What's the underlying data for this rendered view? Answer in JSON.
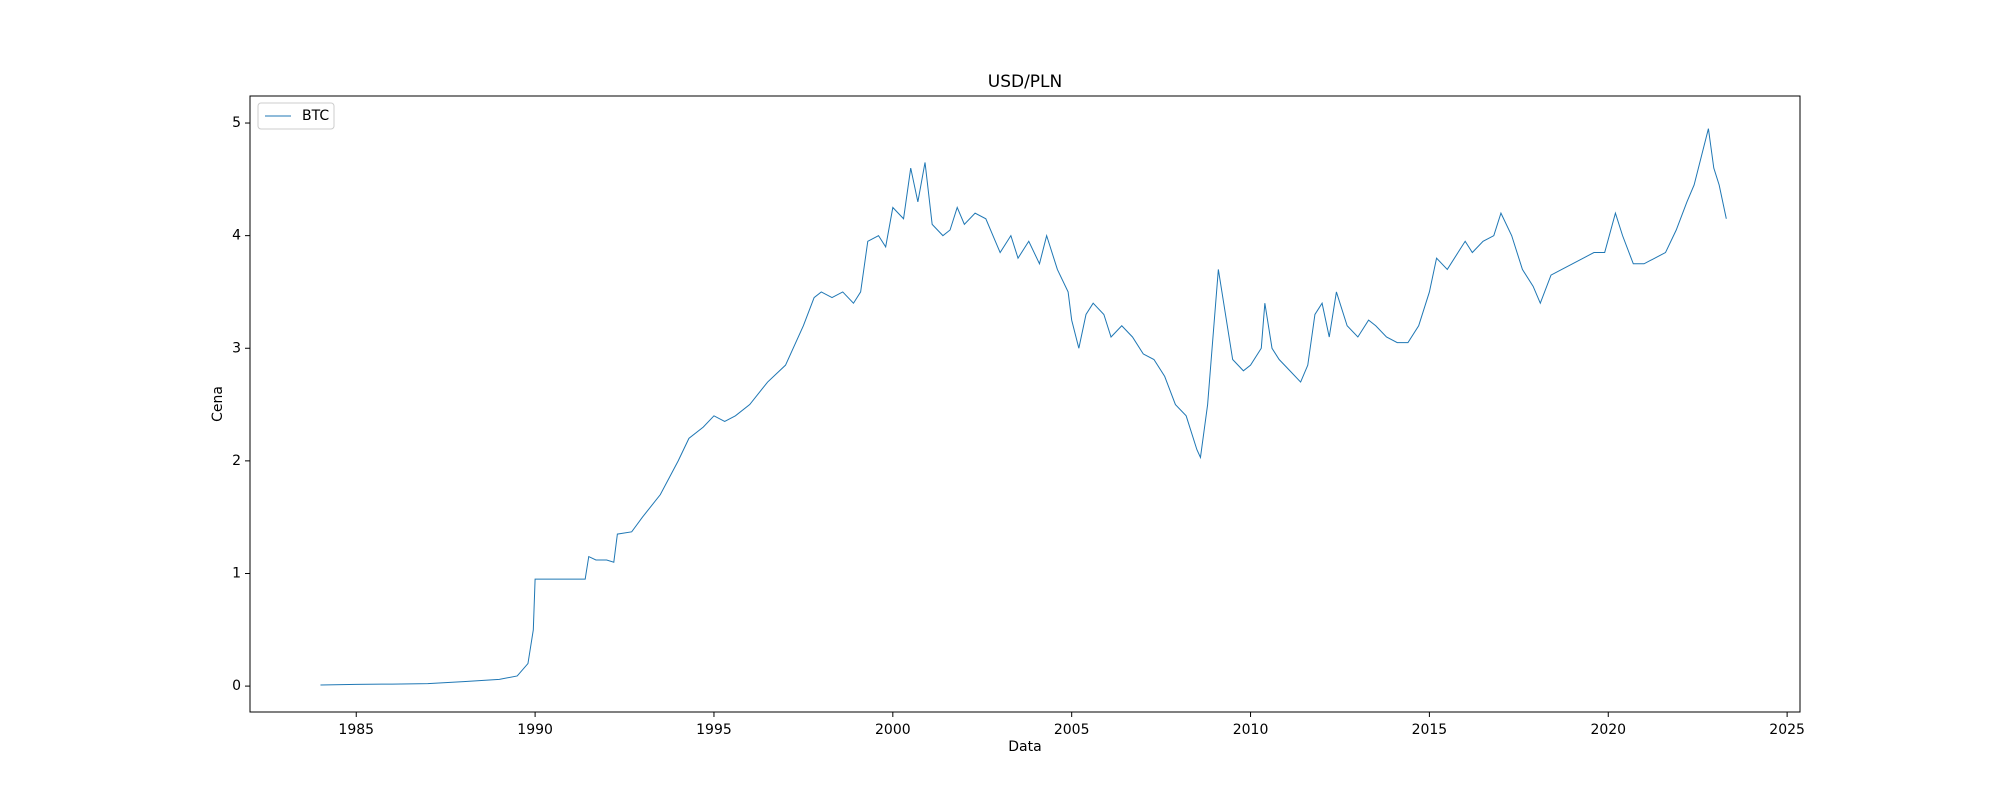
{
  "chart_data": {
    "type": "line",
    "title": "USD/PLN",
    "x_label": "Data",
    "y_label": "Cena",
    "x": [
      1984.0,
      1985,
      1986,
      1987,
      1988,
      1989,
      1989.5,
      1989.8,
      1989.95,
      1990.0,
      1991.4,
      1991.5,
      1991.7,
      1992.0,
      1992.2,
      1992.3,
      1992.7,
      1993.0,
      1993.5,
      1994.0,
      1994.3,
      1994.7,
      1995.0,
      1995.3,
      1995.6,
      1996.0,
      1996.5,
      1997.0,
      1997.5,
      1997.8,
      1998.0,
      1998.3,
      1998.6,
      1998.9,
      1999.1,
      1999.3,
      1999.6,
      1999.8,
      2000.0,
      2000.3,
      2000.5,
      2000.7,
      2000.9,
      2001.1,
      2001.4,
      2001.6,
      2001.8,
      2002.0,
      2002.3,
      2002.6,
      2002.8,
      2003.0,
      2003.3,
      2003.5,
      2003.8,
      2004.1,
      2004.3,
      2004.6,
      2004.9,
      2005.0,
      2005.2,
      2005.4,
      2005.6,
      2005.9,
      2006.1,
      2006.4,
      2006.7,
      2007.0,
      2007.3,
      2007.6,
      2007.9,
      2008.2,
      2008.5,
      2008.6,
      2008.8,
      2008.9,
      2009.1,
      2009.3,
      2009.5,
      2009.8,
      2010.0,
      2010.3,
      2010.4,
      2010.6,
      2010.8,
      2011.1,
      2011.4,
      2011.6,
      2011.8,
      2012.0,
      2012.2,
      2012.4,
      2012.7,
      2013.0,
      2013.3,
      2013.5,
      2013.8,
      2014.1,
      2014.4,
      2014.7,
      2015.0,
      2015.2,
      2015.5,
      2015.8,
      2016.0,
      2016.2,
      2016.5,
      2016.8,
      2017.0,
      2017.3,
      2017.6,
      2017.9,
      2018.1,
      2018.4,
      2018.7,
      2019.0,
      2019.3,
      2019.6,
      2019.9,
      2020.2,
      2020.4,
      2020.7,
      2021.0,
      2021.3,
      2021.6,
      2021.9,
      2022.2,
      2022.4,
      2022.6,
      2022.8,
      2022.95,
      2023.1,
      2023.3
    ],
    "series": [
      {
        "name": "BTC",
        "color": "#1f77b4",
        "values": [
          0.01,
          0.015,
          0.018,
          0.022,
          0.04,
          0.06,
          0.09,
          0.2,
          0.5,
          0.95,
          0.95,
          1.15,
          1.12,
          1.12,
          1.1,
          1.35,
          1.37,
          1.5,
          1.7,
          2.0,
          2.2,
          2.3,
          2.4,
          2.35,
          2.4,
          2.5,
          2.7,
          2.85,
          3.2,
          3.45,
          3.5,
          3.45,
          3.5,
          3.4,
          3.5,
          3.95,
          4.0,
          3.9,
          4.25,
          4.15,
          4.6,
          4.3,
          4.65,
          4.1,
          4.0,
          4.05,
          4.25,
          4.1,
          4.2,
          4.15,
          4.0,
          3.85,
          4.0,
          3.8,
          3.95,
          3.75,
          4.0,
          3.7,
          3.5,
          3.25,
          3.0,
          3.3,
          3.4,
          3.3,
          3.1,
          3.2,
          3.1,
          2.95,
          2.9,
          2.75,
          2.5,
          2.4,
          2.1,
          2.03,
          2.5,
          2.9,
          3.7,
          3.3,
          2.9,
          2.8,
          2.85,
          3.0,
          3.4,
          3.0,
          2.9,
          2.8,
          2.7,
          2.85,
          3.3,
          3.4,
          3.1,
          3.5,
          3.2,
          3.1,
          3.25,
          3.2,
          3.1,
          3.05,
          3.05,
          3.2,
          3.5,
          3.8,
          3.7,
          3.85,
          3.95,
          3.85,
          3.95,
          4.0,
          4.2,
          4.0,
          3.7,
          3.55,
          3.4,
          3.65,
          3.7,
          3.75,
          3.8,
          3.85,
          3.85,
          4.2,
          4.0,
          3.75,
          3.75,
          3.8,
          3.85,
          4.05,
          4.3,
          4.45,
          4.7,
          4.95,
          4.6,
          4.45,
          4.15
        ]
      }
    ],
    "xlim": [
      1982.03,
      2025.36
    ],
    "ylim": [
      -0.23,
      5.24
    ],
    "xticks": [
      1985,
      1990,
      1995,
      2000,
      2005,
      2010,
      2015,
      2020,
      2025
    ],
    "yticks": [
      0,
      1,
      2,
      3,
      4,
      5
    ],
    "grid": false,
    "legend": "upper left"
  }
}
